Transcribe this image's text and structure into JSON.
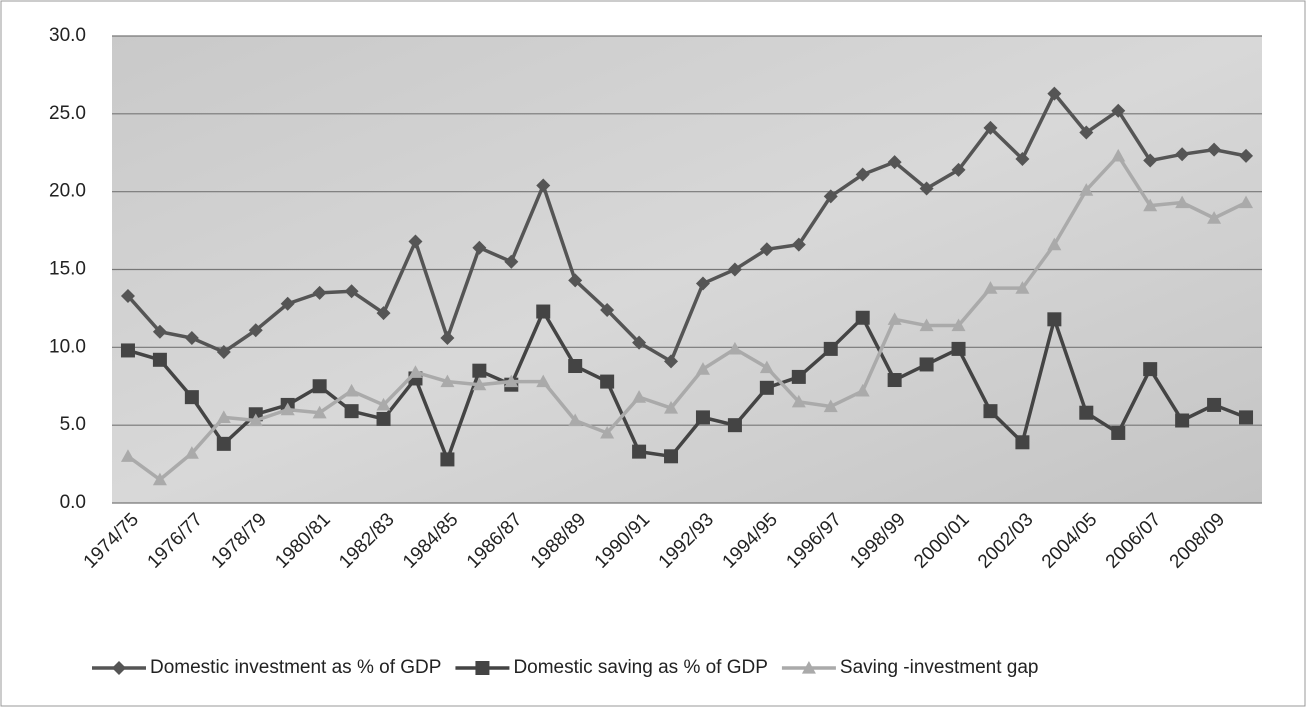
{
  "chart_data": {
    "type": "line",
    "categories": [
      "1974/75",
      null,
      "1976/77",
      null,
      "1978/79",
      null,
      "1980/81",
      null,
      "1982/83",
      null,
      "1984/85",
      null,
      "1986/87",
      null,
      "1988/89",
      null,
      "1990/91",
      null,
      "1992/93",
      null,
      "1994/95",
      null,
      "1996/97",
      null,
      "1998/99",
      null,
      "2000/01",
      null,
      "2002/03",
      null,
      "2004/05",
      null,
      "2006/07",
      null,
      "2008/09",
      null
    ],
    "series": [
      {
        "name": "Domestic investment as % of GDP",
        "color": "#555555",
        "marker": "diamond",
        "values": [
          13.3,
          11.0,
          10.6,
          9.7,
          11.1,
          12.8,
          13.5,
          13.6,
          12.2,
          16.8,
          10.6,
          16.4,
          15.5,
          20.4,
          14.3,
          12.4,
          10.3,
          9.1,
          14.1,
          15.0,
          16.3,
          16.6,
          19.7,
          21.1,
          21.9,
          20.2,
          21.4,
          24.1,
          22.1,
          26.3,
          23.8,
          25.2,
          22.0,
          22.4,
          22.7,
          22.3
        ]
      },
      {
        "name": "Domestic saving as % of GDP",
        "color": "#444444",
        "marker": "square",
        "values": [
          9.8,
          9.2,
          6.8,
          3.8,
          5.7,
          6.3,
          7.5,
          5.9,
          5.4,
          8.0,
          2.8,
          8.5,
          7.6,
          12.3,
          8.8,
          7.8,
          3.3,
          3.0,
          5.5,
          5.0,
          7.4,
          8.1,
          9.9,
          11.9,
          7.9,
          8.9,
          9.9,
          5.9,
          3.9,
          11.8,
          5.8,
          4.5,
          8.6,
          5.3,
          6.3,
          5.5
        ]
      },
      {
        "name": "Saving -investment gap",
        "color": "#aaaaaa",
        "marker": "triangle",
        "values": [
          3.0,
          1.5,
          3.2,
          5.5,
          5.3,
          6.0,
          5.8,
          7.2,
          6.3,
          8.4,
          7.8,
          7.6,
          7.8,
          7.8,
          5.3,
          4.5,
          6.8,
          6.1,
          8.6,
          9.9,
          8.7,
          6.5,
          6.2,
          7.2,
          11.8,
          11.4,
          11.4,
          13.8,
          13.8,
          16.6,
          20.1,
          22.3,
          19.1,
          19.3,
          18.3,
          19.3
        ]
      }
    ],
    "ylim": [
      0,
      30
    ],
    "yticks": [
      {
        "value": 0,
        "label": "0.0"
      },
      {
        "value": 5,
        "label": "5.0"
      },
      {
        "value": 10,
        "label": "10.0"
      },
      {
        "value": 15,
        "label": "15.0"
      },
      {
        "value": 20,
        "label": "20.0"
      },
      {
        "value": 25,
        "label": "25.0"
      },
      {
        "value": 30,
        "label": "30.0"
      }
    ],
    "grid": true,
    "legend": "bottom"
  }
}
